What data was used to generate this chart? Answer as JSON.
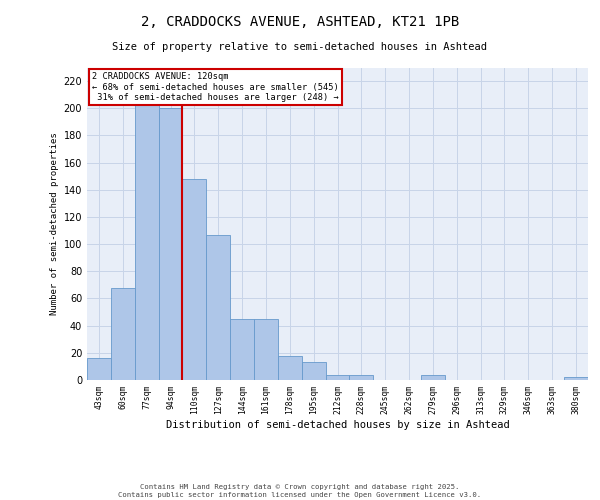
{
  "title_line1": "2, CRADDOCKS AVENUE, ASHTEAD, KT21 1PB",
  "title_line2": "Size of property relative to semi-detached houses in Ashtead",
  "xlabel": "Distribution of semi-detached houses by size in Ashtead",
  "ylabel": "Number of semi-detached properties",
  "bin_labels": [
    "43sqm",
    "60sqm",
    "77sqm",
    "94sqm",
    "110sqm",
    "127sqm",
    "144sqm",
    "161sqm",
    "178sqm",
    "195sqm",
    "212sqm",
    "228sqm",
    "245sqm",
    "262sqm",
    "279sqm",
    "296sqm",
    "313sqm",
    "329sqm",
    "346sqm",
    "363sqm",
    "380sqm"
  ],
  "bar_values": [
    16,
    68,
    210,
    200,
    148,
    107,
    45,
    45,
    18,
    13,
    4,
    4,
    0,
    0,
    4,
    0,
    0,
    0,
    0,
    0,
    2
  ],
  "bar_color": "#aec6e8",
  "bar_edge_color": "#6699cc",
  "ylim": [
    0,
    230
  ],
  "yticks": [
    0,
    20,
    40,
    60,
    80,
    100,
    120,
    140,
    160,
    180,
    200,
    220
  ],
  "property_bin_index": 4,
  "annotation_text": "2 CRADDOCKS AVENUE: 120sqm\n← 68% of semi-detached houses are smaller (545)\n 31% of semi-detached houses are larger (248) →",
  "annotation_box_color": "#ffffff",
  "annotation_box_edge_color": "#cc0000",
  "vline_color": "#cc0000",
  "grid_color": "#c8d4e8",
  "background_color": "#e8eef8",
  "footer_text": "Contains HM Land Registry data © Crown copyright and database right 2025.\nContains public sector information licensed under the Open Government Licence v3.0."
}
